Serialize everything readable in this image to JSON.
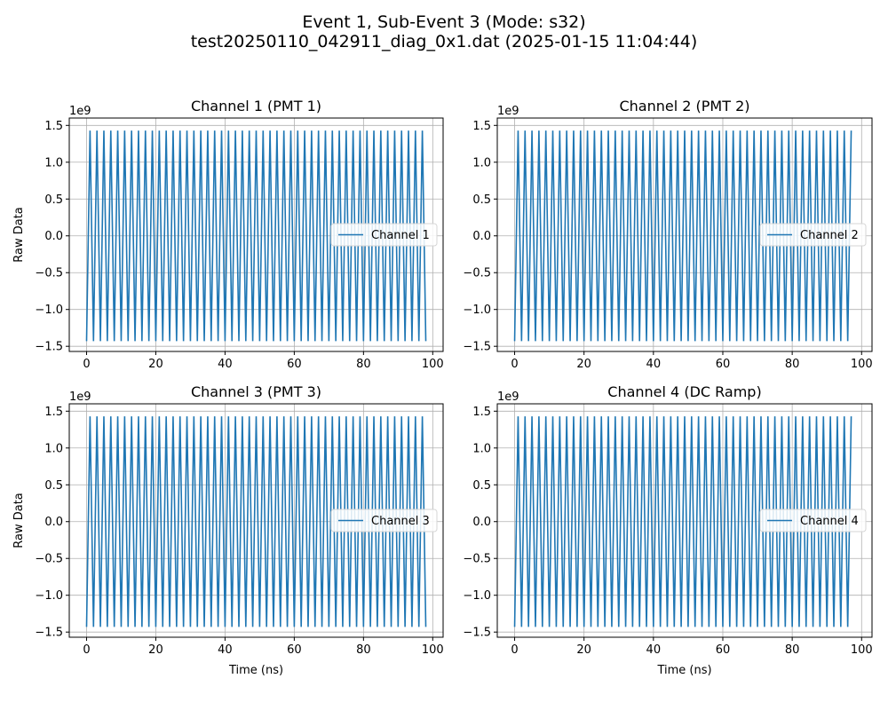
{
  "figure": {
    "title_line1": "Event 1, Sub-Event 3 (Mode: s32)",
    "title_line2": "test20250110_042911_diag_0x1.dat (2025-01-15 11:04:44)"
  },
  "chart_data": [
    {
      "type": "line",
      "title": "Channel 1 (PMT 1)",
      "xlabel": "",
      "ylabel": "Raw Data",
      "offset_text": "1e9",
      "xlim": [
        -5,
        103
      ],
      "ylim": [
        -1.57,
        1.6
      ],
      "x_ticks": [
        0,
        20,
        40,
        60,
        80,
        100
      ],
      "y_ticks": [
        -1.5,
        -1.0,
        -0.5,
        0.0,
        0.5,
        1.0,
        1.5
      ],
      "x_tick_labels": [
        "0",
        "20",
        "40",
        "60",
        "80",
        "100"
      ],
      "y_tick_labels": [
        "−1.5",
        "−1.0",
        "−0.5",
        "0.0",
        "0.5",
        "1.0",
        "1.5"
      ],
      "grid": true,
      "legend_position": "center right",
      "series": [
        {
          "name": "Channel 1",
          "color": "#1f77b4",
          "waveform": {
            "x_start": 0,
            "x_end": 98,
            "period_ns": 2.0,
            "low": -1.43,
            "high": 1.43,
            "first": "low"
          }
        }
      ]
    },
    {
      "type": "line",
      "title": "Channel 2 (PMT 2)",
      "xlabel": "",
      "ylabel": "",
      "offset_text": "1e9",
      "xlim": [
        -5,
        103
      ],
      "ylim": [
        -1.57,
        1.6
      ],
      "x_ticks": [
        0,
        20,
        40,
        60,
        80,
        100
      ],
      "y_ticks": [
        -1.5,
        -1.0,
        -0.5,
        0.0,
        0.5,
        1.0,
        1.5
      ],
      "x_tick_labels": [
        "0",
        "20",
        "40",
        "60",
        "80",
        "100"
      ],
      "y_tick_labels": [
        "−1.5",
        "−1.0",
        "−0.5",
        "0.0",
        "0.5",
        "1.0",
        "1.5"
      ],
      "grid": true,
      "legend_position": "center right",
      "series": [
        {
          "name": "Channel 2",
          "color": "#1f77b4",
          "waveform": {
            "x_start": 0,
            "x_end": 97,
            "period_ns": 2.0,
            "low": -1.43,
            "high": 1.43,
            "first": "low"
          }
        }
      ]
    },
    {
      "type": "line",
      "title": "Channel 3 (PMT 3)",
      "xlabel": "Time (ns)",
      "ylabel": "Raw Data",
      "offset_text": "1e9",
      "xlim": [
        -5,
        103
      ],
      "ylim": [
        -1.57,
        1.6
      ],
      "x_ticks": [
        0,
        20,
        40,
        60,
        80,
        100
      ],
      "y_ticks": [
        -1.5,
        -1.0,
        -0.5,
        0.0,
        0.5,
        1.0,
        1.5
      ],
      "x_tick_labels": [
        "0",
        "20",
        "40",
        "60",
        "80",
        "100"
      ],
      "y_tick_labels": [
        "−1.5",
        "−1.0",
        "−0.5",
        "0.0",
        "0.5",
        "1.0",
        "1.5"
      ],
      "grid": true,
      "legend_position": "center right",
      "series": [
        {
          "name": "Channel 3",
          "color": "#1f77b4",
          "waveform": {
            "x_start": 0,
            "x_end": 98,
            "period_ns": 2.0,
            "low": -1.43,
            "high": 1.43,
            "first": "low"
          }
        }
      ]
    },
    {
      "type": "line",
      "title": "Channel 4 (DC Ramp)",
      "xlabel": "Time (ns)",
      "ylabel": "",
      "offset_text": "1e9",
      "xlim": [
        -5,
        103
      ],
      "ylim": [
        -1.57,
        1.6
      ],
      "x_ticks": [
        0,
        20,
        40,
        60,
        80,
        100
      ],
      "y_ticks": [
        -1.5,
        -1.0,
        -0.5,
        0.0,
        0.5,
        1.0,
        1.5
      ],
      "x_tick_labels": [
        "0",
        "20",
        "40",
        "60",
        "80",
        "100"
      ],
      "y_tick_labels": [
        "−1.5",
        "−1.0",
        "−0.5",
        "0.0",
        "0.5",
        "1.0",
        "1.5"
      ],
      "grid": true,
      "legend_position": "center right",
      "series": [
        {
          "name": "Channel 4",
          "color": "#1f77b4",
          "waveform": {
            "x_start": 0,
            "x_end": 97,
            "period_ns": 2.0,
            "low": -1.43,
            "high": 1.43,
            "first": "low"
          }
        }
      ]
    }
  ]
}
